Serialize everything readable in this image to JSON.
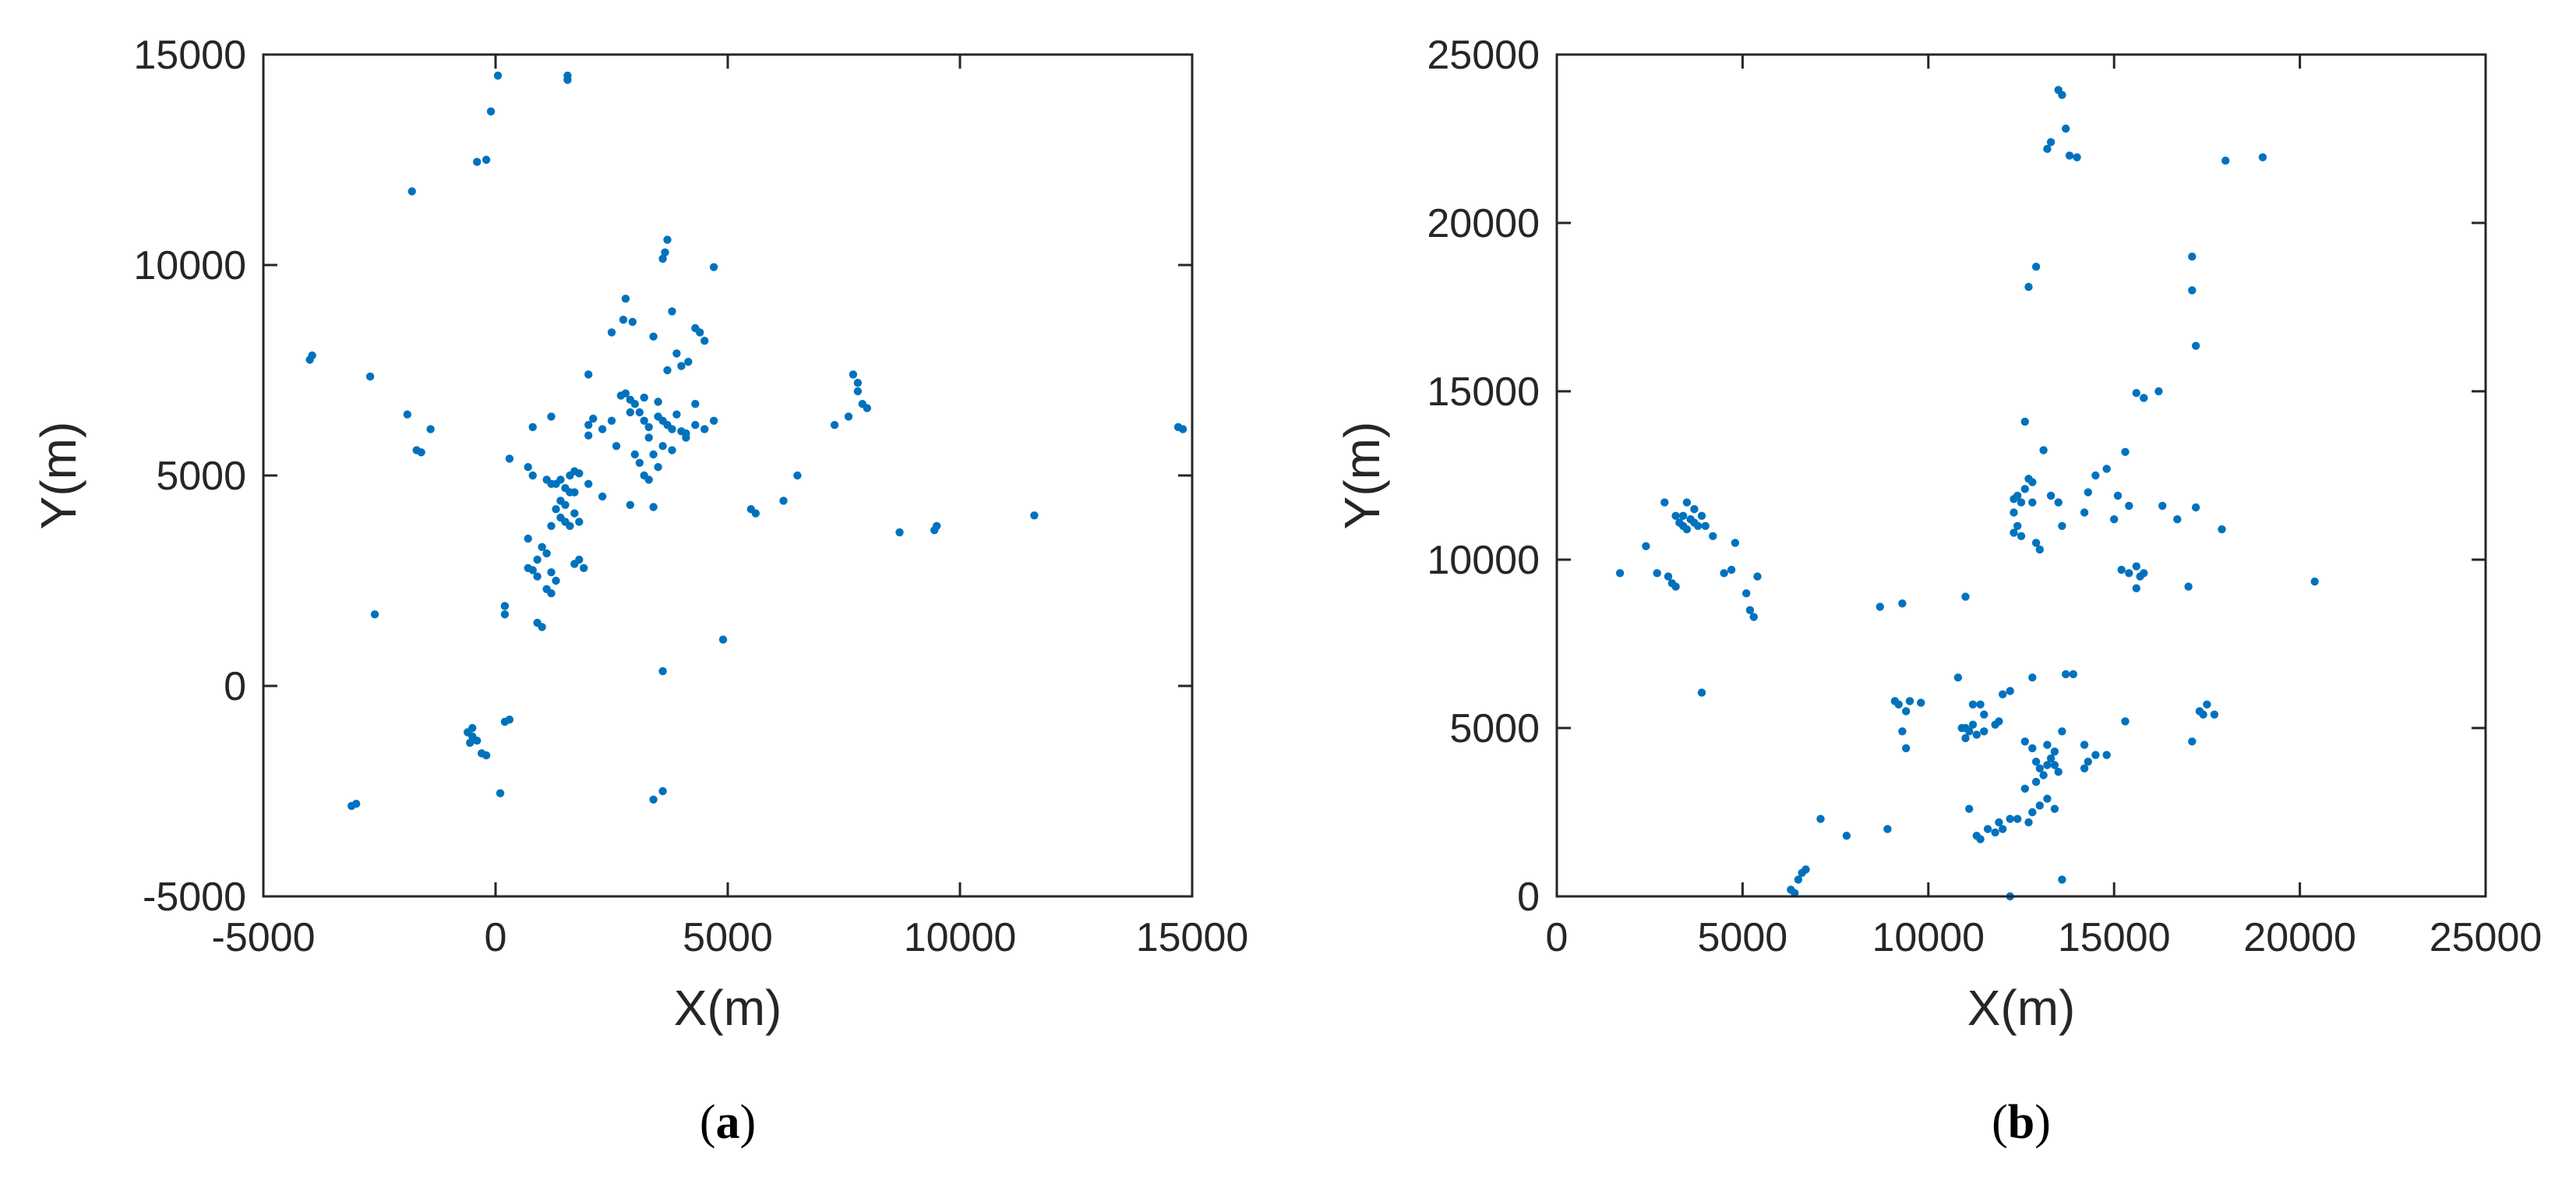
{
  "chart_data": [
    {
      "type": "scatter",
      "panel_letter": "a",
      "xlabel": "X(m)",
      "ylabel": "Y(m)",
      "xlim": [
        -5000,
        15000
      ],
      "ylim": [
        -5000,
        15000
      ],
      "xticks": [
        -5000,
        0,
        5000,
        10000,
        15000
      ],
      "yticks": [
        -5000,
        0,
        5000,
        10000,
        15000
      ],
      "xtick_labels": [
        "-5000",
        "0",
        "5000",
        "10000",
        "15000"
      ],
      "ytick_labels": [
        "-5000",
        "0",
        "5000",
        "10000",
        "15000"
      ],
      "color": "#0072BD",
      "grid": false,
      "points": [
        [
          50,
          14500
        ],
        [
          1550,
          14500
        ],
        [
          1550,
          14400
        ],
        [
          -100,
          13650
        ],
        [
          -400,
          12450
        ],
        [
          -200,
          12500
        ],
        [
          -1800,
          11750
        ],
        [
          3700,
          10600
        ],
        [
          3650,
          10300
        ],
        [
          3600,
          10150
        ],
        [
          4700,
          9950
        ],
        [
          -3950,
          7850
        ],
        [
          -4000,
          7750
        ],
        [
          -2700,
          7350
        ],
        [
          2800,
          9200
        ],
        [
          2750,
          8700
        ],
        [
          2950,
          8650
        ],
        [
          3800,
          8900
        ],
        [
          2500,
          8400
        ],
        [
          3400,
          8300
        ],
        [
          4300,
          8500
        ],
        [
          4400,
          8400
        ],
        [
          4500,
          8200
        ],
        [
          3900,
          7900
        ],
        [
          4000,
          7600
        ],
        [
          4150,
          7700
        ],
        [
          3700,
          7500
        ],
        [
          2000,
          7400
        ],
        [
          -1900,
          6450
        ],
        [
          -1400,
          6100
        ],
        [
          -1700,
          5600
        ],
        [
          -1600,
          5550
        ],
        [
          800,
          6150
        ],
        [
          1200,
          6400
        ],
        [
          2000,
          5950
        ],
        [
          2300,
          6100
        ],
        [
          2500,
          6300
        ],
        [
          2700,
          6900
        ],
        [
          2800,
          6950
        ],
        [
          2900,
          6800
        ],
        [
          3000,
          6700
        ],
        [
          3100,
          6500
        ],
        [
          3200,
          6300
        ],
        [
          3300,
          6150
        ],
        [
          3500,
          6400
        ],
        [
          3600,
          6300
        ],
        [
          3700,
          6200
        ],
        [
          3800,
          6100
        ],
        [
          4000,
          6050
        ],
        [
          4100,
          6000
        ],
        [
          4300,
          6200
        ],
        [
          4500,
          6100
        ],
        [
          4700,
          6300
        ],
        [
          3200,
          6850
        ],
        [
          3500,
          6750
        ],
        [
          3900,
          6450
        ],
        [
          2900,
          6500
        ],
        [
          3300,
          5900
        ],
        [
          2100,
          6350
        ],
        [
          2000,
          6200
        ],
        [
          3000,
          5500
        ],
        [
          3100,
          5300
        ],
        [
          3200,
          5000
        ],
        [
          3300,
          4900
        ],
        [
          3500,
          5200
        ],
        [
          3600,
          5700
        ],
        [
          4100,
          5900
        ],
        [
          3800,
          5600
        ],
        [
          3400,
          5500
        ],
        [
          2600,
          5700
        ],
        [
          2300,
          4500
        ],
        [
          2900,
          4300
        ],
        [
          3400,
          4250
        ],
        [
          4300,
          6700
        ],
        [
          300,
          5400
        ],
        [
          700,
          5200
        ],
        [
          800,
          5000
        ],
        [
          1100,
          4900
        ],
        [
          1200,
          4800
        ],
        [
          1300,
          4800
        ],
        [
          1400,
          4900
        ],
        [
          1500,
          4700
        ],
        [
          1600,
          5000
        ],
        [
          1700,
          5100
        ],
        [
          1800,
          5050
        ],
        [
          1600,
          4600
        ],
        [
          1400,
          4400
        ],
        [
          1300,
          4200
        ],
        [
          1400,
          4000
        ],
        [
          1500,
          3900
        ],
        [
          1600,
          3800
        ],
        [
          1700,
          4100
        ],
        [
          1800,
          3900
        ],
        [
          1500,
          4300
        ],
        [
          1700,
          4600
        ],
        [
          1200,
          3800
        ],
        [
          2000,
          4800
        ],
        [
          700,
          3500
        ],
        [
          1000,
          3300
        ],
        [
          1100,
          3150
        ],
        [
          900,
          3000
        ],
        [
          700,
          2800
        ],
        [
          800,
          2750
        ],
        [
          900,
          2600
        ],
        [
          1200,
          2700
        ],
        [
          1300,
          2500
        ],
        [
          1100,
          2300
        ],
        [
          1200,
          2200
        ],
        [
          1800,
          3000
        ],
        [
          1900,
          2800
        ],
        [
          1700,
          2900
        ],
        [
          200,
          1900
        ],
        [
          200,
          1700
        ],
        [
          900,
          1500
        ],
        [
          1000,
          1400
        ],
        [
          4900,
          1100
        ],
        [
          -2600,
          1700
        ],
        [
          5500,
          4200
        ],
        [
          5600,
          4100
        ],
        [
          6200,
          4400
        ],
        [
          6500,
          5000
        ],
        [
          7300,
          6200
        ],
        [
          7600,
          6400
        ],
        [
          7700,
          7400
        ],
        [
          7800,
          7000
        ],
        [
          7900,
          6700
        ],
        [
          8000,
          6600
        ],
        [
          7800,
          7200
        ],
        [
          8700,
          3650
        ],
        [
          9500,
          3800
        ],
        [
          9450,
          3700
        ],
        [
          11600,
          4050
        ],
        [
          14700,
          6150
        ],
        [
          14800,
          6100
        ],
        [
          3600,
          350
        ],
        [
          -500,
          -1000
        ],
        [
          -600,
          -1100
        ],
        [
          -500,
          -1200
        ],
        [
          -400,
          -1300
        ],
        [
          -550,
          -1350
        ],
        [
          -300,
          -1600
        ],
        [
          -200,
          -1650
        ],
        [
          300,
          -800
        ],
        [
          200,
          -850
        ],
        [
          100,
          -2550
        ],
        [
          3400,
          -2700
        ],
        [
          3600,
          -2500
        ],
        [
          -3000,
          -2800
        ],
        [
          -3100,
          -2850
        ]
      ]
    },
    {
      "type": "scatter",
      "panel_letter": "b",
      "xlabel": "X(m)",
      "ylabel": "Y(m)",
      "xlim": [
        0,
        25000
      ],
      "ylim": [
        0,
        25000
      ],
      "xticks": [
        0,
        5000,
        10000,
        15000,
        20000,
        25000
      ],
      "yticks": [
        0,
        5000,
        10000,
        15000,
        20000,
        25000
      ],
      "xtick_labels": [
        "0",
        "5000",
        "10000",
        "15000",
        "20000",
        "25000"
      ],
      "ytick_labels": [
        "0",
        "5000",
        "10000",
        "15000",
        "20000",
        "25000"
      ],
      "color": "#0072BD",
      "grid": false,
      "points": [
        [
          13500,
          23950
        ],
        [
          13600,
          23800
        ],
        [
          13300,
          22400
        ],
        [
          13200,
          22200
        ],
        [
          13800,
          22000
        ],
        [
          14000,
          21950
        ],
        [
          13700,
          22800
        ],
        [
          18000,
          21850
        ],
        [
          19000,
          21950
        ],
        [
          17100,
          19000
        ],
        [
          17100,
          18000
        ],
        [
          17200,
          16350
        ],
        [
          12900,
          18700
        ],
        [
          12700,
          18100
        ],
        [
          15600,
          14950
        ],
        [
          15800,
          14800
        ],
        [
          16200,
          15000
        ],
        [
          12600,
          14100
        ],
        [
          12300,
          11800
        ],
        [
          12400,
          11900
        ],
        [
          12500,
          11700
        ],
        [
          12600,
          12100
        ],
        [
          12700,
          12400
        ],
        [
          12800,
          11700
        ],
        [
          12300,
          11400
        ],
        [
          12400,
          11000
        ],
        [
          12500,
          10700
        ],
        [
          12300,
          10800
        ],
        [
          12900,
          10500
        ],
        [
          13000,
          10300
        ],
        [
          12800,
          12300
        ],
        [
          13300,
          11900
        ],
        [
          13100,
          13250
        ],
        [
          13500,
          11700
        ],
        [
          13600,
          11000
        ],
        [
          14200,
          11400
        ],
        [
          14300,
          12000
        ],
        [
          14500,
          12500
        ],
        [
          14800,
          12700
        ],
        [
          15100,
          11900
        ],
        [
          15300,
          13200
        ],
        [
          15000,
          11200
        ],
        [
          15200,
          9700
        ],
        [
          15400,
          9600
        ],
        [
          15600,
          9800
        ],
        [
          15700,
          9500
        ],
        [
          15800,
          9600
        ],
        [
          15600,
          9150
        ],
        [
          15400,
          11600
        ],
        [
          16300,
          11600
        ],
        [
          16700,
          11200
        ],
        [
          17200,
          11550
        ],
        [
          17000,
          9200
        ],
        [
          17900,
          10900
        ],
        [
          20400,
          9350
        ],
        [
          3300,
          11100
        ],
        [
          3400,
          11000
        ],
        [
          3500,
          10900
        ],
        [
          3600,
          11200
        ],
        [
          3700,
          11100
        ],
        [
          3800,
          11000
        ],
        [
          3500,
          11700
        ],
        [
          3400,
          11300
        ],
        [
          3700,
          11500
        ],
        [
          3900,
          11300
        ],
        [
          4000,
          11000
        ],
        [
          4200,
          10700
        ],
        [
          3200,
          11300
        ],
        [
          2900,
          11700
        ],
        [
          2400,
          10400
        ],
        [
          2700,
          9600
        ],
        [
          3000,
          9500
        ],
        [
          3100,
          9300
        ],
        [
          3200,
          9200
        ],
        [
          1700,
          9600
        ],
        [
          4500,
          9600
        ],
        [
          4700,
          9700
        ],
        [
          4800,
          10500
        ],
        [
          5100,
          9000
        ],
        [
          5200,
          8500
        ],
        [
          5300,
          8300
        ],
        [
          5400,
          9500
        ],
        [
          3900,
          6050
        ],
        [
          8700,
          8600
        ],
        [
          9300,
          8700
        ],
        [
          11000,
          8900
        ],
        [
          9100,
          5800
        ],
        [
          9200,
          5700
        ],
        [
          9400,
          5500
        ],
        [
          9500,
          5800
        ],
        [
          9300,
          4900
        ],
        [
          9400,
          4400
        ],
        [
          9800,
          5750
        ],
        [
          10800,
          6500
        ],
        [
          11000,
          5000
        ],
        [
          11100,
          4900
        ],
        [
          11200,
          5100
        ],
        [
          11300,
          4800
        ],
        [
          11000,
          4700
        ],
        [
          11200,
          5700
        ],
        [
          11400,
          5700
        ],
        [
          11500,
          5400
        ],
        [
          11800,
          5100
        ],
        [
          11900,
          5200
        ],
        [
          12000,
          6000
        ],
        [
          12200,
          6100
        ],
        [
          12800,
          6500
        ],
        [
          11500,
          4900
        ],
        [
          10900,
          5000
        ],
        [
          12600,
          4600
        ],
        [
          12800,
          4400
        ],
        [
          12900,
          4000
        ],
        [
          13000,
          3800
        ],
        [
          13100,
          3600
        ],
        [
          13200,
          3900
        ],
        [
          13300,
          4100
        ],
        [
          13400,
          3900
        ],
        [
          13500,
          3700
        ],
        [
          13400,
          4300
        ],
        [
          13200,
          4500
        ],
        [
          13600,
          4900
        ],
        [
          13700,
          6600
        ],
        [
          13900,
          6600
        ],
        [
          12900,
          3400
        ],
        [
          13000,
          2700
        ],
        [
          13200,
          2900
        ],
        [
          13400,
          2600
        ],
        [
          12800,
          2500
        ],
        [
          12600,
          3200
        ],
        [
          12400,
          2300
        ],
        [
          14200,
          3800
        ],
        [
          14300,
          4000
        ],
        [
          14500,
          4200
        ],
        [
          14800,
          4200
        ],
        [
          15300,
          5200
        ],
        [
          14200,
          4500
        ],
        [
          11100,
          2600
        ],
        [
          11300,
          1800
        ],
        [
          11400,
          1700
        ],
        [
          11800,
          1900
        ],
        [
          11900,
          2200
        ],
        [
          12000,
          2000
        ],
        [
          11600,
          2000
        ],
        [
          12200,
          2300
        ],
        [
          12700,
          2200
        ],
        [
          7100,
          2300
        ],
        [
          7800,
          1800
        ],
        [
          8900,
          2000
        ],
        [
          6300,
          200
        ],
        [
          6500,
          500
        ],
        [
          6600,
          700
        ],
        [
          6700,
          800
        ],
        [
          6400,
          100
        ],
        [
          12200,
          0
        ],
        [
          13600,
          500
        ],
        [
          17100,
          4600
        ],
        [
          17300,
          5500
        ],
        [
          17400,
          5400
        ],
        [
          17700,
          5400
        ],
        [
          17500,
          5700
        ]
      ]
    }
  ]
}
